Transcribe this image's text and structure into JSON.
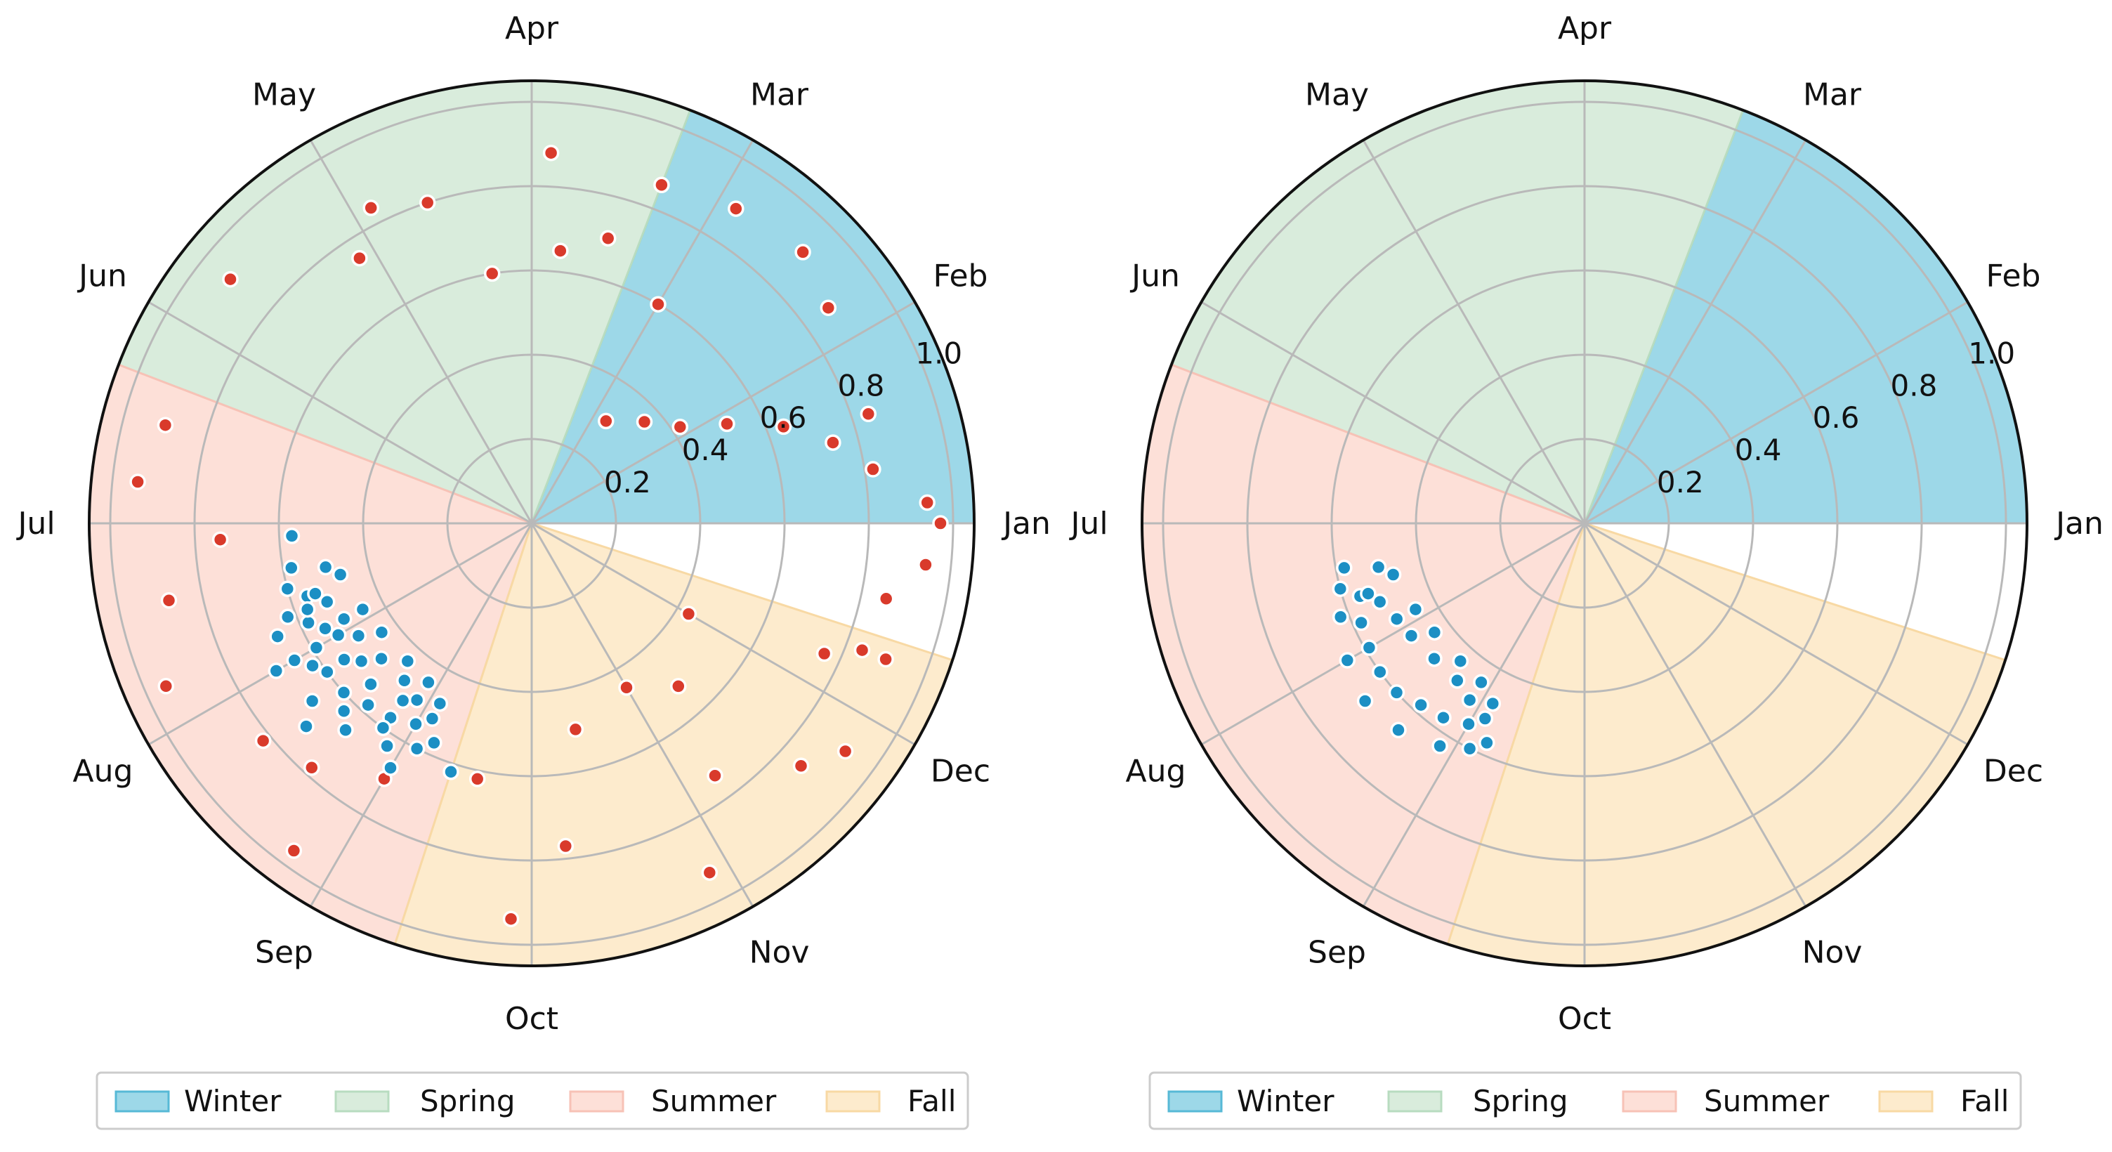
{
  "chart_data": [
    {
      "type": "scatter",
      "subtype": "polar",
      "months": [
        "Jan",
        "Feb",
        "Mar",
        "Apr",
        "May",
        "Jun",
        "Jul",
        "Aug",
        "Sep",
        "Oct",
        "Nov",
        "Dec"
      ],
      "r_ticks": [
        0.2,
        0.4,
        0.6,
        0.8,
        1.0
      ],
      "r_tick_labels": [
        "0.2",
        "0.4",
        "0.6",
        "0.8",
        "1.0"
      ],
      "rlim": [
        0,
        1.05
      ],
      "grid": true,
      "legend_placement": "bottom",
      "seasons": [
        {
          "name": "Winter",
          "color": "#9dd8e8",
          "edge": "#57b9d6",
          "start_month": 1,
          "end_month": 3.3
        },
        {
          "name": "Spring",
          "color": "#d9ecdc",
          "edge": "#b8dcc0",
          "start_month": 3.3,
          "end_month": 6.3
        },
        {
          "name": "Summer",
          "color": "#fde0d8",
          "edge": "#f7c2b6",
          "start_month": 6.3,
          "end_month": 9.4
        },
        {
          "name": "Fall",
          "color": "#fdebcd",
          "edge": "#f8d9a4",
          "start_month": 9.4,
          "end_month": 12.4
        }
      ],
      "series": [
        {
          "name": "points",
          "marker_color": "#d93a2b",
          "marker_edge": "#ffffff",
          "points": [
            [
              1.0,
              0.97
            ],
            [
              1.1,
              0.94
            ],
            [
              0.8,
              0.94
            ],
            [
              1.3,
              0.82
            ],
            [
              1.5,
              0.74
            ],
            [
              1.7,
              0.64
            ],
            [
              1.9,
              0.52
            ],
            [
              2.1,
              0.42
            ],
            [
              2.4,
              0.36
            ],
            [
              2.8,
              0.3
            ],
            [
              3.0,
              0.6
            ],
            [
              3.5,
              0.7
            ],
            [
              3.8,
              0.65
            ],
            [
              4.3,
              0.6
            ],
            [
              4.6,
              0.8
            ],
            [
              5.1,
              0.75
            ],
            [
              11.4,
              0.52
            ],
            [
              11.0,
              0.45
            ],
            [
              12.0,
              0.43
            ],
            [
              10.4,
              0.5
            ],
            [
              9.6,
              0.62
            ],
            [
              9.0,
              0.7
            ],
            [
              8.3,
              0.82
            ],
            [
              7.4,
              0.88
            ],
            [
              6.5,
              0.9
            ],
            [
              5.7,
              0.92
            ],
            [
              6.8,
              0.94
            ],
            [
              7.8,
              0.95
            ],
            [
              8.8,
              0.96
            ],
            [
              9.9,
              0.94
            ],
            [
              10.9,
              0.93
            ],
            [
              11.8,
              0.92
            ],
            [
              2.2,
              0.87
            ],
            [
              2.5,
              0.91
            ],
            [
              2.9,
              0.89
            ],
            [
              3.3,
              0.86
            ],
            [
              0.6,
              0.86
            ],
            [
              0.3,
              0.9
            ],
            [
              11.6,
              0.86
            ],
            [
              12.3,
              0.84
            ],
            [
              1.6,
              0.84
            ],
            [
              3.9,
              0.88
            ],
            [
              4.9,
              0.84
            ],
            [
              7.1,
              0.74
            ],
            [
              8.6,
              0.78
            ],
            [
              10.2,
              0.77
            ],
            [
              11.2,
              0.74
            ],
            [
              12.2,
              0.76
            ]
          ]
        },
        {
          "name": "points",
          "marker_color": "#1c8fc4",
          "marker_edge": "#ffffff",
          "points": [
            [
              7.6,
              0.56
            ],
            [
              7.8,
              0.58
            ],
            [
              8.0,
              0.59
            ],
            [
              8.2,
              0.6
            ],
            [
              8.4,
              0.6
            ],
            [
              8.6,
              0.58
            ],
            [
              8.8,
              0.57
            ],
            [
              9.0,
              0.55
            ],
            [
              9.1,
              0.52
            ],
            [
              8.9,
              0.5
            ],
            [
              8.7,
              0.48
            ],
            [
              8.4,
              0.48
            ],
            [
              8.1,
              0.49
            ],
            [
              7.9,
              0.5
            ],
            [
              7.7,
              0.52
            ],
            [
              7.6,
              0.54
            ],
            [
              7.7,
              0.62
            ],
            [
              8.0,
              0.65
            ],
            [
              8.3,
              0.67
            ],
            [
              8.6,
              0.66
            ],
            [
              8.9,
              0.63
            ],
            [
              9.1,
              0.6
            ],
            [
              9.2,
              0.57
            ],
            [
              9.1,
              0.48
            ],
            [
              8.9,
              0.45
            ],
            [
              8.6,
              0.44
            ],
            [
              8.2,
              0.44
            ],
            [
              7.9,
              0.45
            ],
            [
              7.5,
              0.47
            ],
            [
              7.4,
              0.5
            ],
            [
              7.35,
              0.58
            ],
            [
              7.5,
              0.6
            ],
            [
              7.9,
              0.55
            ],
            [
              8.2,
              0.55
            ],
            [
              8.5,
              0.54
            ],
            [
              8.8,
              0.52
            ],
            [
              8.3,
              0.52
            ],
            [
              8.0,
              0.53
            ],
            [
              7.7,
              0.57
            ],
            [
              8.1,
              0.62
            ],
            [
              8.5,
              0.63
            ],
            [
              8.8,
              0.6
            ],
            [
              7.1,
              0.57
            ],
            [
              9.4,
              0.62
            ],
            [
              9.0,
              0.67
            ],
            [
              7.8,
              0.66
            ],
            [
              8.4,
              0.72
            ],
            [
              8.0,
              0.7
            ]
          ]
        }
      ],
      "legend": [
        "Winter",
        "Spring",
        "Summer",
        "Fall"
      ]
    },
    {
      "type": "scatter",
      "subtype": "polar",
      "months": [
        "Jan",
        "Feb",
        "Mar",
        "Apr",
        "May",
        "Jun",
        "Jul",
        "Aug",
        "Sep",
        "Oct",
        "Nov",
        "Dec"
      ],
      "r_ticks": [
        0.2,
        0.4,
        0.6,
        0.8,
        1.0
      ],
      "r_tick_labels": [
        "0.2",
        "0.4",
        "0.6",
        "0.8",
        "1.0"
      ],
      "rlim": [
        0,
        1.05
      ],
      "grid": true,
      "legend_placement": "bottom",
      "seasons": [
        {
          "name": "Winter",
          "color": "#9dd8e8",
          "edge": "#57b9d6",
          "start_month": 1,
          "end_month": 3.3
        },
        {
          "name": "Spring",
          "color": "#d9ecdc",
          "edge": "#b8dcc0",
          "start_month": 3.3,
          "end_month": 6.3
        },
        {
          "name": "Summer",
          "color": "#fde0d8",
          "edge": "#f7c2b6",
          "start_month": 6.3,
          "end_month": 9.4
        },
        {
          "name": "Fall",
          "color": "#fdebcd",
          "edge": "#f8d9a4",
          "start_month": 9.4,
          "end_month": 12.4
        }
      ],
      "series": [
        {
          "name": "points",
          "marker_color": "#1c8fc4",
          "marker_edge": "#ffffff",
          "points": [
            [
              7.6,
              0.56
            ],
            [
              7.8,
              0.58
            ],
            [
              8.0,
              0.59
            ],
            [
              8.2,
              0.6
            ],
            [
              8.4,
              0.6
            ],
            [
              8.6,
              0.58
            ],
            [
              8.8,
              0.57
            ],
            [
              9.0,
              0.55
            ],
            [
              9.1,
              0.52
            ],
            [
              8.9,
              0.5
            ],
            [
              8.7,
              0.48
            ],
            [
              8.4,
              0.48
            ],
            [
              8.1,
              0.49
            ],
            [
              7.9,
              0.5
            ],
            [
              7.7,
              0.52
            ],
            [
              7.6,
              0.54
            ],
            [
              7.7,
              0.62
            ],
            [
              8.0,
              0.65
            ],
            [
              8.3,
              0.67
            ],
            [
              8.6,
              0.66
            ],
            [
              8.9,
              0.63
            ],
            [
              9.1,
              0.6
            ],
            [
              9.2,
              0.57
            ],
            [
              9.1,
              0.48
            ],
            [
              8.9,
              0.45
            ],
            [
              8.6,
              0.44
            ],
            [
              8.2,
              0.44
            ],
            [
              7.9,
              0.45
            ],
            [
              7.5,
              0.47
            ],
            [
              7.4,
              0.5
            ],
            [
              7.35,
              0.58
            ],
            [
              7.5,
              0.6
            ]
          ]
        }
      ],
      "legend": [
        "Winter",
        "Spring",
        "Summer",
        "Fall"
      ]
    }
  ]
}
